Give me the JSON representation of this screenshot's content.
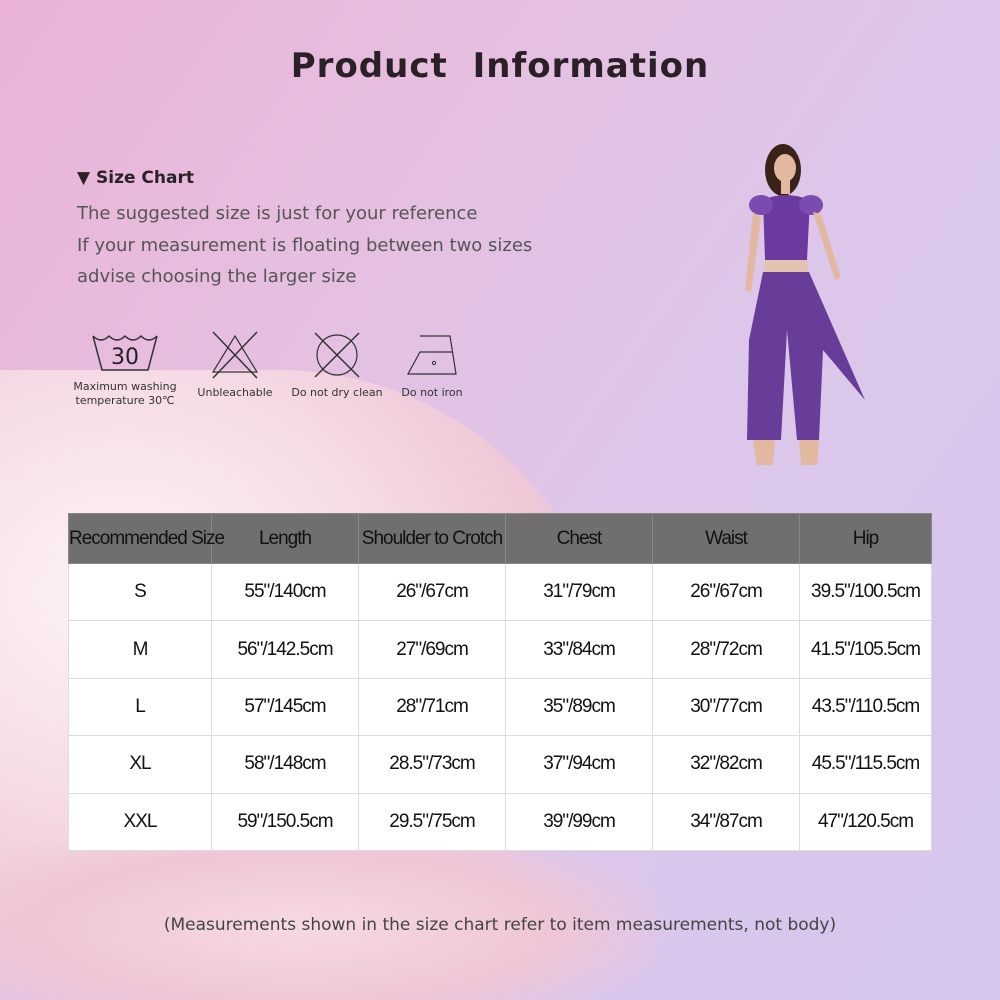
{
  "title": "Product Information",
  "size_chart": {
    "heading": "Size Chart",
    "triangle_icon": "triangle-down-icon",
    "notes": [
      "The suggested size is just for your reference",
      "If your measurement is floating between two sizes",
      "advise choosing the larger size"
    ]
  },
  "care": [
    {
      "icon": "wash-30-icon",
      "number": "30",
      "label_1": "Maximum washing",
      "label_2": "temperature 30℃"
    },
    {
      "icon": "no-bleach-icon",
      "label_1": "Unbleachable"
    },
    {
      "icon": "no-dry-clean-icon",
      "label_1": "Do not dry clean"
    },
    {
      "icon": "no-iron-icon",
      "label_1": "Do not iron"
    }
  ],
  "table": {
    "headers": [
      "Recommended Size",
      "Length",
      "Shoulder to Crotch",
      "Chest",
      "Waist",
      "Hip"
    ],
    "rows": [
      [
        "S",
        "55\"/140cm",
        "26\"/67cm",
        "31\"/79cm",
        "26\"/67cm",
        "39.5\"/100.5cm"
      ],
      [
        "M",
        "56\"/142.5cm",
        "27\"/69cm",
        "33\"/84cm",
        "28\"/72cm",
        "41.5\"/105.5cm"
      ],
      [
        "L",
        "57\"/145cm",
        "28\"/71cm",
        "35\"/89cm",
        "30\"/77cm",
        "43.5\"/110.5cm"
      ],
      [
        "XL",
        "58\"/148cm",
        "28.5\"/73cm",
        "37\"/94cm",
        "32\"/82cm",
        "45.5\"/115.5cm"
      ],
      [
        "XXL",
        "59\"/150.5cm",
        "29.5\"/75cm",
        "39\"/99cm",
        "34\"/87cm",
        "47\"/120.5cm"
      ]
    ]
  },
  "footnote": "(Measurements shown in the size chart refer to item measurements, not body)",
  "colors": {
    "header_bg": "#6f6f6f",
    "costume": "#6a3a9e"
  }
}
